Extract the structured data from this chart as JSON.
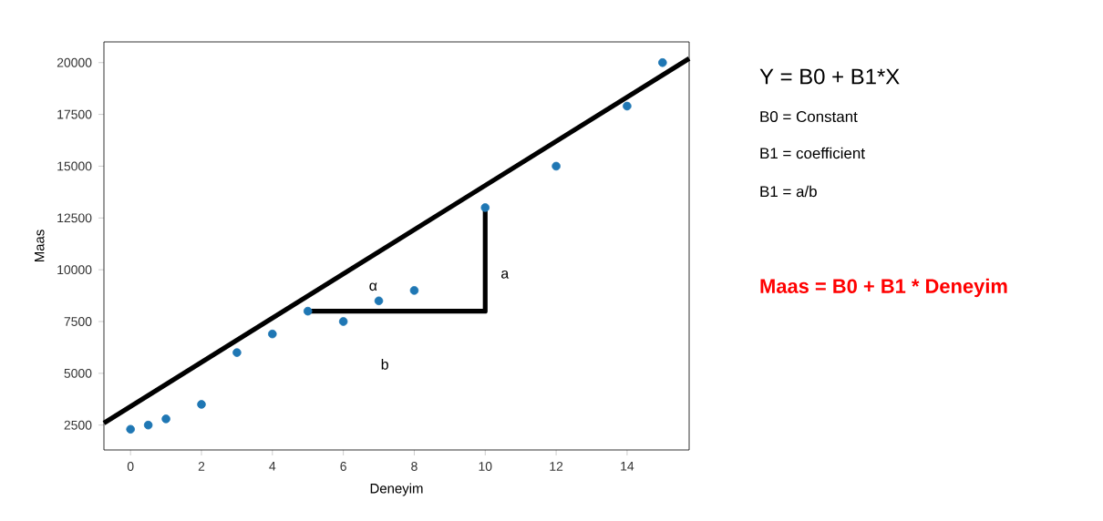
{
  "chart_data": {
    "type": "scatter",
    "xlabel": "Deneyim",
    "ylabel": "Maas",
    "xlim": [
      -0.75,
      15.75
    ],
    "ylim": [
      1300,
      21000
    ],
    "xticks": [
      0,
      2,
      4,
      6,
      8,
      10,
      12,
      14
    ],
    "yticks": [
      2500,
      5000,
      7500,
      10000,
      12500,
      15000,
      17500,
      20000
    ],
    "grid": false,
    "series": [
      {
        "color": "#1f77b4",
        "x": [
          0,
          0.5,
          1,
          2,
          3,
          4,
          5,
          6,
          7,
          8,
          10,
          12,
          14,
          15
        ],
        "values": [
          2300,
          2500,
          2800,
          3500,
          6000,
          6900,
          8000,
          7500,
          8500,
          9000,
          13000,
          15000,
          17900,
          20000
        ]
      },
      {
        "type": "line",
        "color": "#000000",
        "x": [
          -0.75,
          15.75
        ],
        "values": [
          2600,
          20200
        ]
      },
      {
        "type": "line",
        "color": "#000000",
        "x": [
          5,
          10,
          10
        ],
        "values": [
          8000,
          8000,
          13000
        ]
      }
    ],
    "annotations": [
      "a",
      "b",
      "α",
      "Y = B0 + B1*X",
      "B0  =  Constant",
      "B1 = coefficient",
      "B1 = a/b",
      "Maas = B0 + B1 * Deneyim"
    ]
  }
}
